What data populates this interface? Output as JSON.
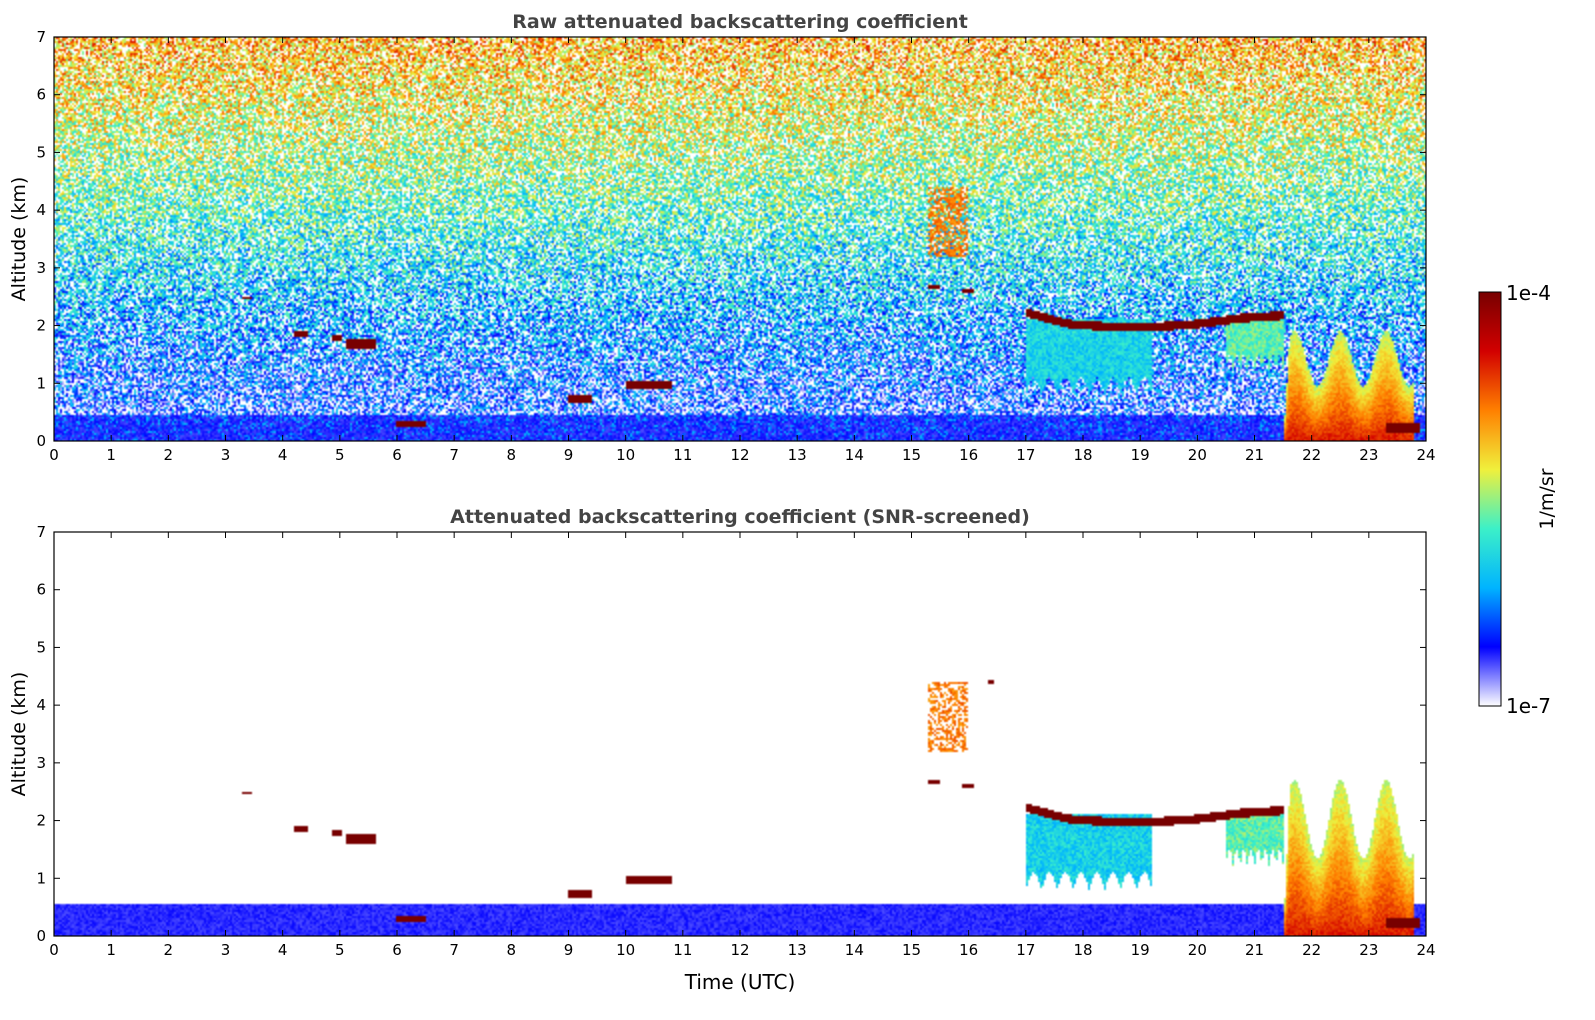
{
  "chart_data": [
    {
      "type": "heatmap",
      "title": "Raw attenuated backscattering coefficient",
      "xlabel": "",
      "ylabel": "Altitude (km)",
      "xlim": [
        0,
        24
      ],
      "ylim": [
        0,
        7
      ],
      "x_ticks": [
        "0",
        "1",
        "2",
        "3",
        "4",
        "5",
        "6",
        "7",
        "8",
        "9",
        "10",
        "11",
        "12",
        "13",
        "14",
        "15",
        "16",
        "17",
        "18",
        "19",
        "20",
        "21",
        "22",
        "23",
        "24"
      ],
      "y_ticks": [
        "0",
        "1",
        "2",
        "3",
        "4",
        "5",
        "6",
        "7"
      ],
      "screened": false,
      "features": [
        {
          "kind": "noise",
          "note": "speckle noise increasing with altitude (blue near ground to yellow/orange aloft)"
        },
        {
          "kind": "surface_layer",
          "x": [
            0,
            24
          ],
          "y": [
            0,
            0.45
          ],
          "level": 0.12
        },
        {
          "kind": "cloud",
          "x": [
            5.1,
            5.65
          ],
          "y": [
            1.6,
            1.75
          ],
          "level": 1.0
        },
        {
          "kind": "cloud",
          "x": [
            4.85,
            5.05
          ],
          "y": [
            1.75,
            1.85
          ],
          "level": 1.0
        },
        {
          "kind": "cloud",
          "x": [
            4.2,
            4.45
          ],
          "y": [
            1.8,
            1.9
          ],
          "level": 1.0
        },
        {
          "kind": "cloud",
          "x": [
            3.3,
            3.45
          ],
          "y": [
            2.45,
            2.5
          ],
          "level": 1.0
        },
        {
          "kind": "cloud",
          "x": [
            6.0,
            6.5
          ],
          "y": [
            0.25,
            0.35
          ],
          "level": 1.0
        },
        {
          "kind": "cloud",
          "x": [
            9.0,
            9.4
          ],
          "y": [
            0.65,
            0.8
          ],
          "level": 1.0
        },
        {
          "kind": "cloud",
          "x": [
            10.0,
            10.8
          ],
          "y": [
            0.9,
            1.05
          ],
          "level": 1.0
        },
        {
          "kind": "cloud",
          "x": [
            15.3,
            15.5
          ],
          "y": [
            2.65,
            2.72
          ],
          "level": 1.0
        },
        {
          "kind": "cloud",
          "x": [
            15.9,
            16.1
          ],
          "y": [
            2.55,
            2.65
          ],
          "level": 1.0
        },
        {
          "kind": "cirrus",
          "x": [
            15.3,
            16.0
          ],
          "y": [
            3.2,
            4.4
          ],
          "level": 0.72
        },
        {
          "kind": "cloud_top",
          "x": [
            17.0,
            21.5
          ],
          "y_top": [
            2.3,
            2.1,
            2.05,
            2.05,
            2.1,
            2.2,
            2.25
          ],
          "level": 1.0
        },
        {
          "kind": "precip",
          "x": [
            17.0,
            19.2
          ],
          "y": [
            0.8,
            2.1
          ],
          "level": 0.5
        },
        {
          "kind": "precip",
          "x": [
            20.5,
            21.5
          ],
          "y": [
            1.2,
            2.2
          ],
          "level": 0.6
        },
        {
          "kind": "precip_to_ground",
          "x": [
            21.5,
            23.8
          ],
          "y": [
            0.0,
            1.9
          ],
          "level": 0.78
        },
        {
          "kind": "cloud",
          "x": [
            23.3,
            23.9
          ],
          "y": [
            0.15,
            0.3
          ],
          "level": 1.0
        }
      ]
    },
    {
      "type": "heatmap",
      "title": "Attenuated backscattering coefficient (SNR-screened)",
      "xlabel": "Time (UTC)",
      "ylabel": "Altitude (km)",
      "xlim": [
        0,
        24
      ],
      "ylim": [
        0,
        7
      ],
      "x_ticks": [
        "0",
        "1",
        "2",
        "3",
        "4",
        "5",
        "6",
        "7",
        "8",
        "9",
        "10",
        "11",
        "12",
        "13",
        "14",
        "15",
        "16",
        "17",
        "18",
        "19",
        "20",
        "21",
        "22",
        "23",
        "24"
      ],
      "y_ticks": [
        "0",
        "1",
        "2",
        "3",
        "4",
        "5",
        "6",
        "7"
      ],
      "screened": true,
      "features": [
        {
          "kind": "surface_layer",
          "x": [
            0,
            24
          ],
          "y": [
            0,
            0.55
          ],
          "level": 0.12
        },
        {
          "kind": "cloud",
          "x": [
            5.1,
            5.65
          ],
          "y": [
            1.6,
            1.75
          ],
          "level": 1.0
        },
        {
          "kind": "cloud",
          "x": [
            4.85,
            5.05
          ],
          "y": [
            1.75,
            1.85
          ],
          "level": 1.0
        },
        {
          "kind": "cloud",
          "x": [
            4.2,
            4.45
          ],
          "y": [
            1.8,
            1.9
          ],
          "level": 1.0
        },
        {
          "kind": "cloud",
          "x": [
            3.3,
            3.45
          ],
          "y": [
            2.45,
            2.5
          ],
          "level": 1.0
        },
        {
          "kind": "cloud",
          "x": [
            6.0,
            6.5
          ],
          "y": [
            0.25,
            0.35
          ],
          "level": 1.0
        },
        {
          "kind": "cloud",
          "x": [
            9.0,
            9.4
          ],
          "y": [
            0.65,
            0.8
          ],
          "level": 1.0
        },
        {
          "kind": "cloud",
          "x": [
            10.0,
            10.8
          ],
          "y": [
            0.9,
            1.05
          ],
          "level": 1.0
        },
        {
          "kind": "cloud",
          "x": [
            15.3,
            15.5
          ],
          "y": [
            2.65,
            2.72
          ],
          "level": 1.0
        },
        {
          "kind": "cloud",
          "x": [
            15.9,
            16.1
          ],
          "y": [
            2.55,
            2.65
          ],
          "level": 1.0
        },
        {
          "kind": "cloud",
          "x": [
            16.35,
            16.45
          ],
          "y": [
            4.35,
            4.45
          ],
          "level": 1.0
        },
        {
          "kind": "cirrus",
          "x": [
            15.3,
            16.0
          ],
          "y": [
            3.2,
            4.4
          ],
          "level": 0.72
        },
        {
          "kind": "cloud_top",
          "x": [
            17.0,
            21.5
          ],
          "y_top": [
            2.3,
            2.1,
            2.05,
            2.05,
            2.1,
            2.2,
            2.25
          ],
          "level": 1.0
        },
        {
          "kind": "precip",
          "x": [
            17.0,
            19.2
          ],
          "y": [
            0.8,
            2.1
          ],
          "level": 0.5
        },
        {
          "kind": "precip",
          "x": [
            20.5,
            21.5
          ],
          "y": [
            1.2,
            2.2
          ],
          "level": 0.6
        },
        {
          "kind": "precip_to_ground",
          "x": [
            21.5,
            23.8
          ],
          "y": [
            0.0,
            2.7
          ],
          "level": 0.78
        },
        {
          "kind": "cloud",
          "x": [
            23.3,
            23.9
          ],
          "y": [
            0.15,
            0.3
          ],
          "level": 1.0
        }
      ]
    }
  ],
  "colorbar": {
    "label": "1/m/sr",
    "max_label": "1e-4",
    "min_label": "1e-7",
    "scale": "log",
    "range": [
      1e-07,
      0.0001
    ],
    "colormap": "jet",
    "colors": [
      "#ffffff",
      "#0000ff",
      "#00b4ff",
      "#3cf0c8",
      "#f0f03c",
      "#ff8000",
      "#d20000",
      "#780000"
    ]
  }
}
